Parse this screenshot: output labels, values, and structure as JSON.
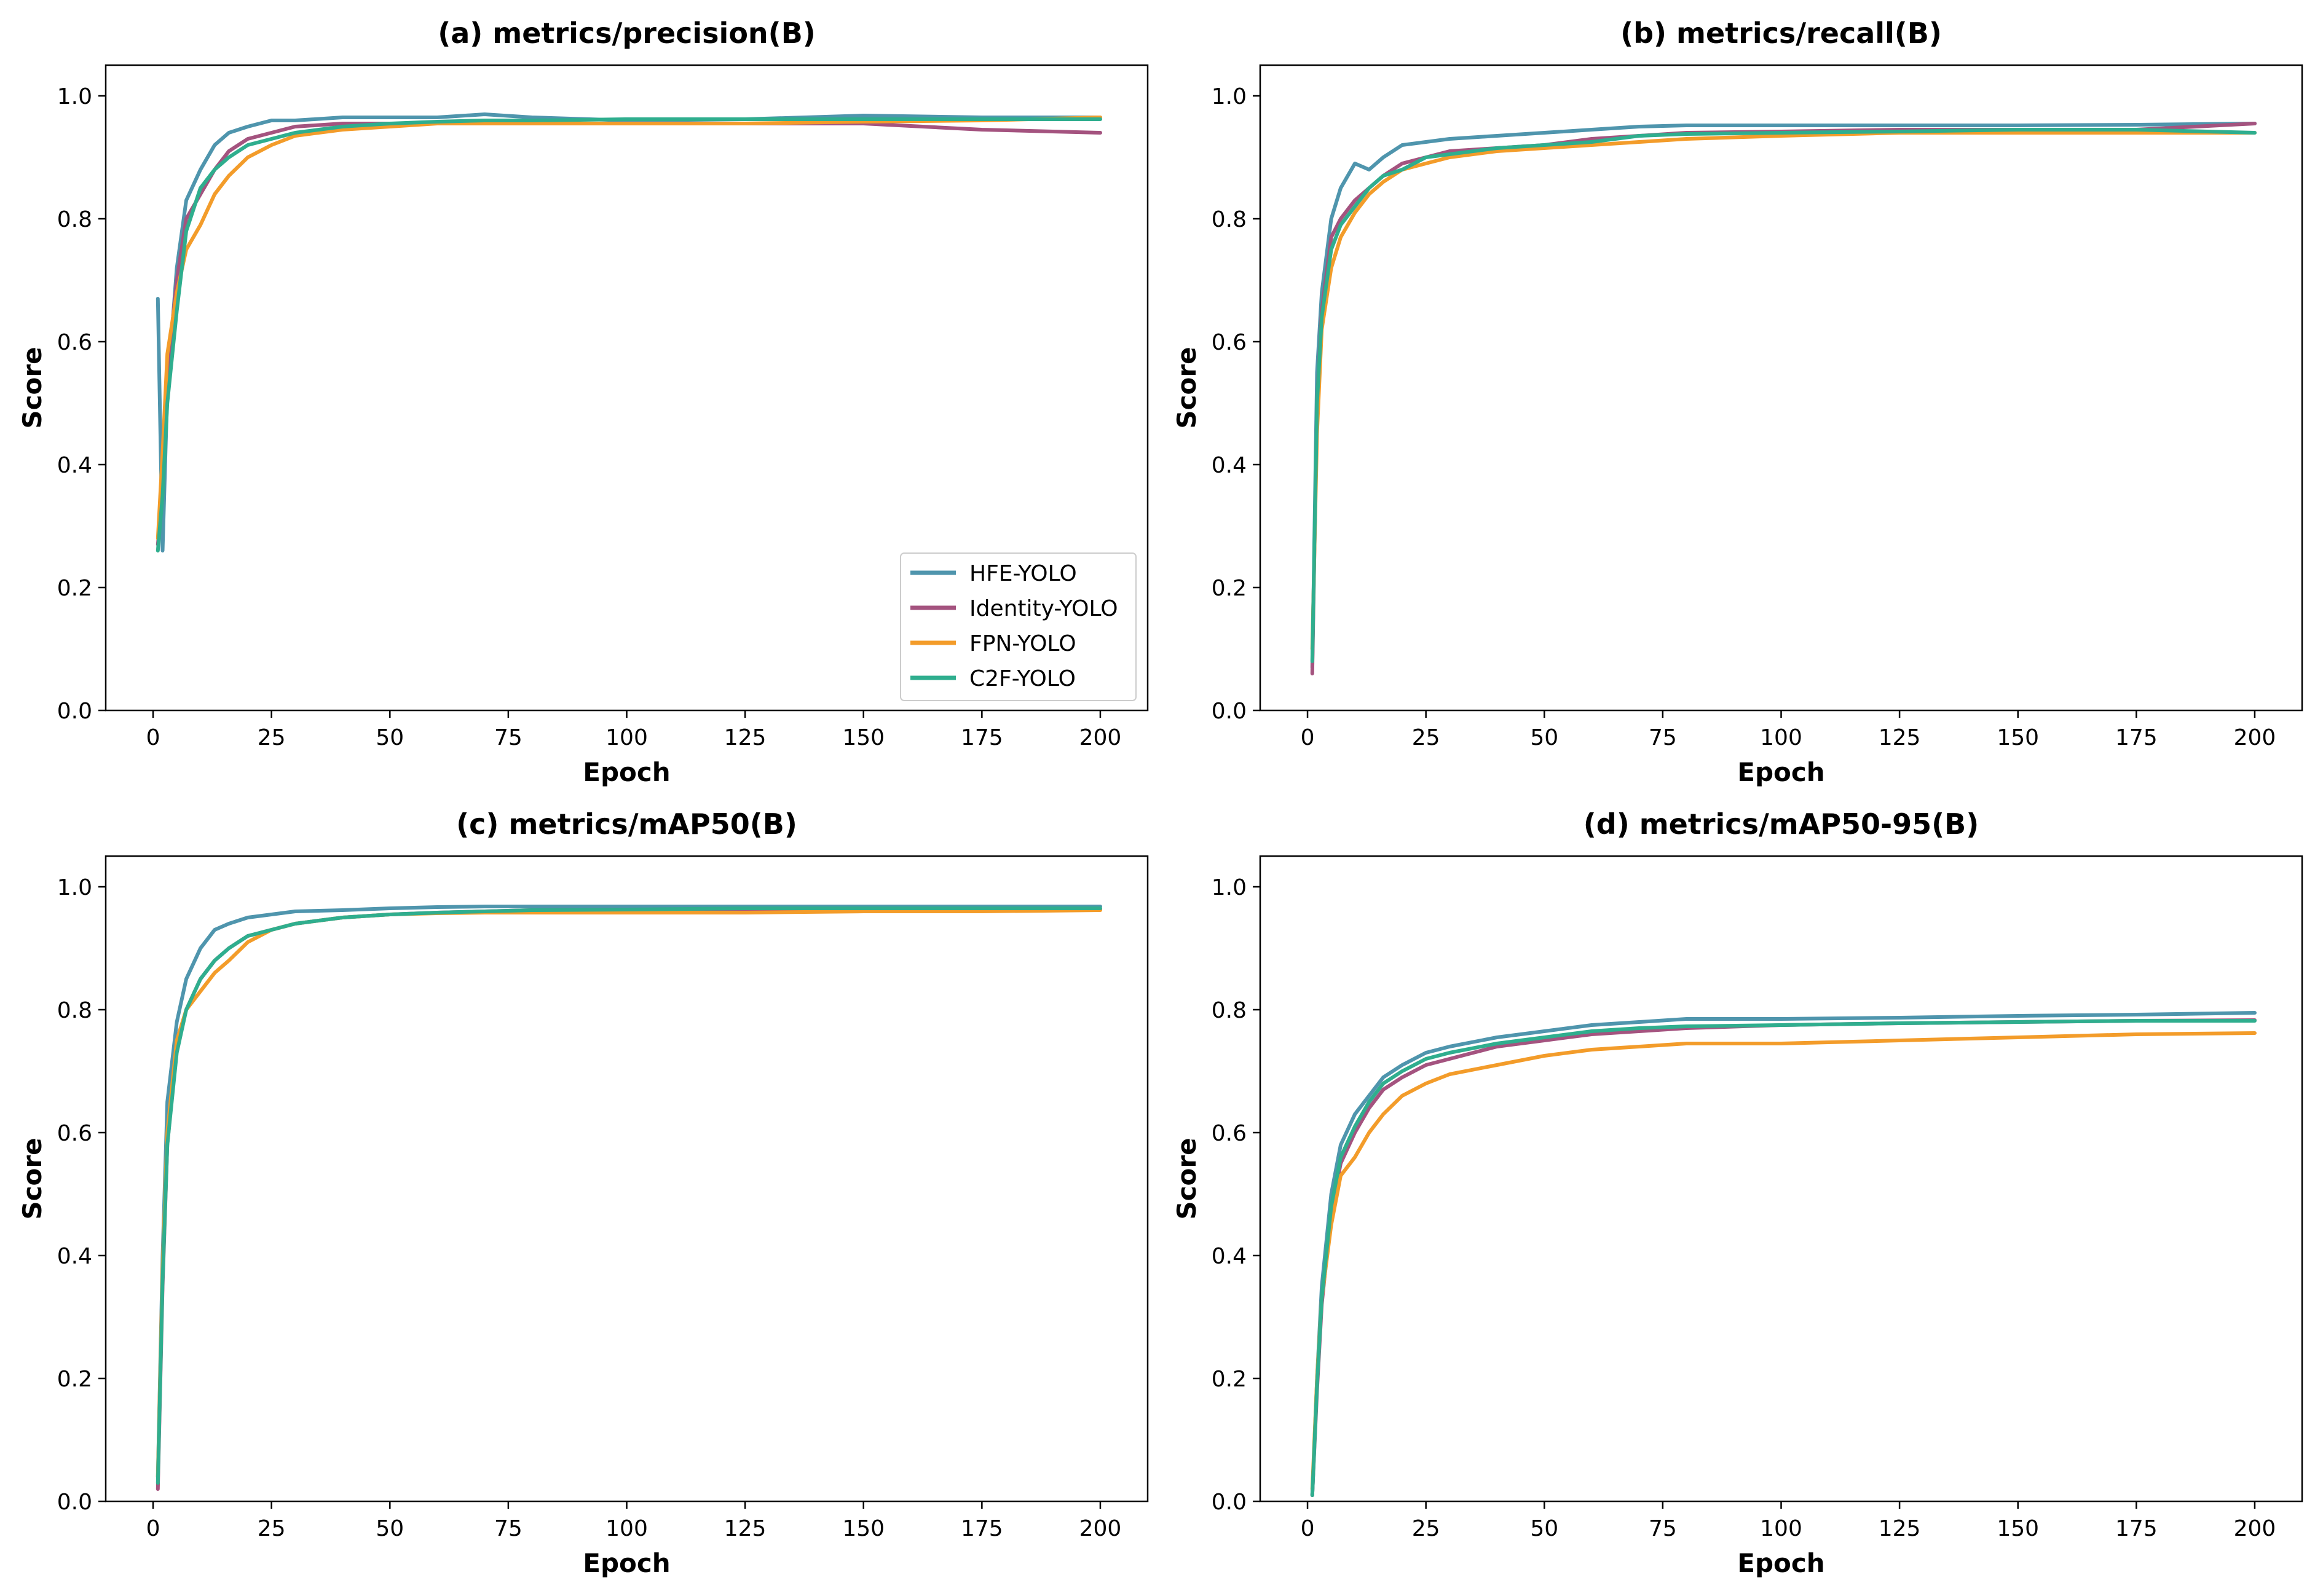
{
  "colors": {
    "HFE-YOLO": "#4f95ad",
    "Identity-YOLO": "#a4537f",
    "FPN-YOLO": "#f39c2a",
    "C2F-YOLO": "#2fae8e"
  },
  "legend": {
    "entries": [
      "HFE-YOLO",
      "Identity-YOLO",
      "FPN-YOLO",
      "C2F-YOLO"
    ],
    "placement": "lower-right of panel (a)"
  },
  "chart_data": [
    {
      "type": "line",
      "title": "(a) metrics/precision(B)",
      "xlabel": "Epoch",
      "ylabel": "Score",
      "xlim": [
        -10,
        210
      ],
      "ylim": [
        0,
        1.05
      ],
      "xticks": [
        "0",
        "25",
        "50",
        "75",
        "100",
        "125",
        "150",
        "175",
        "200"
      ],
      "yticks": [
        "0.0",
        "0.2",
        "0.4",
        "0.6",
        "0.8",
        "1.0"
      ],
      "grid": false,
      "legend": true,
      "series": [
        {
          "name": "HFE-YOLO",
          "x": [
            1,
            2,
            3,
            5,
            7,
            10,
            13,
            16,
            20,
            25,
            30,
            40,
            50,
            60,
            70,
            80,
            100,
            125,
            150,
            175,
            200
          ],
          "y": [
            0.67,
            0.26,
            0.52,
            0.72,
            0.83,
            0.88,
            0.92,
            0.94,
            0.95,
            0.96,
            0.96,
            0.965,
            0.965,
            0.965,
            0.97,
            0.965,
            0.96,
            0.962,
            0.968,
            0.965,
            0.965
          ]
        },
        {
          "name": "Identity-YOLO",
          "x": [
            1,
            2,
            3,
            5,
            7,
            10,
            13,
            16,
            20,
            25,
            30,
            40,
            50,
            60,
            70,
            80,
            100,
            125,
            150,
            175,
            200
          ],
          "y": [
            0.27,
            0.35,
            0.55,
            0.7,
            0.8,
            0.84,
            0.88,
            0.91,
            0.93,
            0.94,
            0.95,
            0.955,
            0.955,
            0.955,
            0.955,
            0.955,
            0.955,
            0.955,
            0.955,
            0.945,
            0.94
          ]
        },
        {
          "name": "FPN-YOLO",
          "x": [
            1,
            2,
            3,
            5,
            7,
            10,
            13,
            16,
            20,
            25,
            30,
            40,
            50,
            60,
            70,
            80,
            100,
            125,
            150,
            175,
            200
          ],
          "y": [
            0.28,
            0.42,
            0.58,
            0.68,
            0.75,
            0.79,
            0.84,
            0.87,
            0.9,
            0.92,
            0.935,
            0.945,
            0.95,
            0.955,
            0.955,
            0.955,
            0.955,
            0.955,
            0.958,
            0.96,
            0.965
          ]
        },
        {
          "name": "C2F-YOLO",
          "x": [
            1,
            2,
            3,
            5,
            7,
            10,
            13,
            16,
            20,
            25,
            30,
            40,
            50,
            60,
            70,
            80,
            100,
            125,
            150,
            175,
            200
          ],
          "y": [
            0.26,
            0.35,
            0.5,
            0.65,
            0.78,
            0.85,
            0.88,
            0.9,
            0.92,
            0.93,
            0.94,
            0.95,
            0.955,
            0.958,
            0.96,
            0.96,
            0.962,
            0.962,
            0.962,
            0.962,
            0.962
          ]
        }
      ]
    },
    {
      "type": "line",
      "title": "(b) metrics/recall(B)",
      "xlabel": "Epoch",
      "ylabel": "Score",
      "xlim": [
        -10,
        210
      ],
      "ylim": [
        0,
        1.05
      ],
      "xticks": [
        "0",
        "25",
        "50",
        "75",
        "100",
        "125",
        "150",
        "175",
        "200"
      ],
      "yticks": [
        "0.0",
        "0.2",
        "0.4",
        "0.6",
        "0.8",
        "1.0"
      ],
      "grid": false,
      "legend": false,
      "series": [
        {
          "name": "HFE-YOLO",
          "x": [
            1,
            2,
            3,
            5,
            7,
            10,
            13,
            16,
            20,
            25,
            30,
            40,
            50,
            60,
            70,
            80,
            100,
            125,
            150,
            175,
            200
          ],
          "y": [
            0.07,
            0.55,
            0.68,
            0.8,
            0.85,
            0.89,
            0.88,
            0.9,
            0.92,
            0.925,
            0.93,
            0.935,
            0.94,
            0.945,
            0.95,
            0.952,
            0.952,
            0.952,
            0.952,
            0.953,
            0.955
          ]
        },
        {
          "name": "Identity-YOLO",
          "x": [
            1,
            2,
            3,
            5,
            7,
            10,
            13,
            16,
            20,
            25,
            30,
            40,
            50,
            60,
            70,
            80,
            100,
            125,
            150,
            175,
            200
          ],
          "y": [
            0.06,
            0.5,
            0.65,
            0.77,
            0.8,
            0.83,
            0.85,
            0.87,
            0.89,
            0.9,
            0.91,
            0.915,
            0.92,
            0.93,
            0.935,
            0.94,
            0.942,
            0.945,
            0.945,
            0.945,
            0.955
          ]
        },
        {
          "name": "FPN-YOLO",
          "x": [
            1,
            2,
            3,
            5,
            7,
            10,
            13,
            16,
            20,
            25,
            30,
            40,
            50,
            60,
            70,
            80,
            100,
            125,
            150,
            175,
            200
          ],
          "y": [
            0.1,
            0.45,
            0.62,
            0.72,
            0.77,
            0.81,
            0.84,
            0.86,
            0.88,
            0.89,
            0.9,
            0.91,
            0.915,
            0.92,
            0.925,
            0.93,
            0.935,
            0.94,
            0.94,
            0.94,
            0.94
          ]
        },
        {
          "name": "C2F-YOLO",
          "x": [
            1,
            2,
            3,
            5,
            7,
            10,
            13,
            16,
            20,
            25,
            30,
            40,
            50,
            60,
            70,
            80,
            100,
            125,
            150,
            175,
            200
          ],
          "y": [
            0.08,
            0.5,
            0.64,
            0.75,
            0.79,
            0.82,
            0.85,
            0.87,
            0.88,
            0.9,
            0.905,
            0.915,
            0.92,
            0.925,
            0.935,
            0.938,
            0.94,
            0.942,
            0.945,
            0.945,
            0.94
          ]
        }
      ]
    },
    {
      "type": "line",
      "title": "(c) metrics/mAP50(B)",
      "xlabel": "Epoch",
      "ylabel": "Score",
      "xlim": [
        -10,
        210
      ],
      "ylim": [
        0,
        1.05
      ],
      "xticks": [
        "0",
        "25",
        "50",
        "75",
        "100",
        "125",
        "150",
        "175",
        "200"
      ],
      "yticks": [
        "0.0",
        "0.2",
        "0.4",
        "0.6",
        "0.8",
        "1.0"
      ],
      "grid": false,
      "legend": false,
      "series": [
        {
          "name": "HFE-YOLO",
          "x": [
            1,
            2,
            3,
            5,
            7,
            10,
            13,
            16,
            20,
            25,
            30,
            40,
            50,
            60,
            70,
            80,
            100,
            125,
            150,
            175,
            200
          ],
          "y": [
            0.04,
            0.4,
            0.65,
            0.78,
            0.85,
            0.9,
            0.93,
            0.94,
            0.95,
            0.955,
            0.96,
            0.962,
            0.965,
            0.967,
            0.968,
            0.968,
            0.968,
            0.968,
            0.968,
            0.968,
            0.968
          ]
        },
        {
          "name": "Identity-YOLO",
          "x": [
            1,
            2,
            3,
            5,
            7,
            10,
            13,
            16,
            20,
            25,
            30,
            40,
            50,
            60,
            70,
            80,
            100,
            125,
            150,
            175,
            200
          ],
          "y": [
            0.02,
            0.35,
            0.58,
            0.74,
            0.8,
            0.85,
            0.88,
            0.9,
            0.92,
            0.93,
            0.94,
            0.95,
            0.955,
            0.958,
            0.96,
            0.962,
            0.963,
            0.963,
            0.963,
            0.963,
            0.963
          ]
        },
        {
          "name": "FPN-YOLO",
          "x": [
            1,
            2,
            3,
            5,
            7,
            10,
            13,
            16,
            20,
            25,
            30,
            40,
            50,
            60,
            70,
            80,
            100,
            125,
            150,
            175,
            200
          ],
          "y": [
            0.04,
            0.38,
            0.6,
            0.75,
            0.8,
            0.83,
            0.86,
            0.88,
            0.91,
            0.93,
            0.94,
            0.95,
            0.955,
            0.957,
            0.958,
            0.958,
            0.958,
            0.958,
            0.96,
            0.96,
            0.962
          ]
        },
        {
          "name": "C2F-YOLO",
          "x": [
            1,
            2,
            3,
            5,
            7,
            10,
            13,
            16,
            20,
            25,
            30,
            40,
            50,
            60,
            70,
            80,
            100,
            125,
            150,
            175,
            200
          ],
          "y": [
            0.03,
            0.36,
            0.58,
            0.73,
            0.8,
            0.85,
            0.88,
            0.9,
            0.92,
            0.93,
            0.94,
            0.95,
            0.955,
            0.958,
            0.96,
            0.962,
            0.963,
            0.965,
            0.965,
            0.965,
            0.965
          ]
        }
      ]
    },
    {
      "type": "line",
      "title": "(d) metrics/mAP50-95(B)",
      "xlabel": "Epoch",
      "ylabel": "Score",
      "xlim": [
        -10,
        210
      ],
      "ylim": [
        0,
        1.05
      ],
      "xticks": [
        "0",
        "25",
        "50",
        "75",
        "100",
        "125",
        "150",
        "175",
        "200"
      ],
      "yticks": [
        "0.0",
        "0.2",
        "0.4",
        "0.6",
        "0.8",
        "1.0"
      ],
      "grid": false,
      "legend": false,
      "series": [
        {
          "name": "HFE-YOLO",
          "x": [
            1,
            2,
            3,
            5,
            7,
            10,
            13,
            16,
            20,
            25,
            30,
            40,
            50,
            60,
            70,
            80,
            100,
            125,
            150,
            175,
            200
          ],
          "y": [
            0.01,
            0.2,
            0.35,
            0.5,
            0.58,
            0.63,
            0.66,
            0.69,
            0.71,
            0.73,
            0.74,
            0.755,
            0.765,
            0.775,
            0.78,
            0.785,
            0.785,
            0.787,
            0.79,
            0.792,
            0.795
          ]
        },
        {
          "name": "Identity-YOLO",
          "x": [
            1,
            2,
            3,
            5,
            7,
            10,
            13,
            16,
            20,
            25,
            30,
            40,
            50,
            60,
            70,
            80,
            100,
            125,
            150,
            175,
            200
          ],
          "y": [
            0.01,
            0.18,
            0.32,
            0.47,
            0.55,
            0.6,
            0.64,
            0.67,
            0.69,
            0.71,
            0.72,
            0.74,
            0.75,
            0.76,
            0.765,
            0.77,
            0.775,
            0.778,
            0.78,
            0.782,
            0.783
          ]
        },
        {
          "name": "FPN-YOLO",
          "x": [
            1,
            2,
            3,
            5,
            7,
            10,
            13,
            16,
            20,
            25,
            30,
            40,
            50,
            60,
            70,
            80,
            100,
            125,
            150,
            175,
            200
          ],
          "y": [
            0.02,
            0.2,
            0.33,
            0.45,
            0.53,
            0.56,
            0.6,
            0.63,
            0.66,
            0.68,
            0.695,
            0.71,
            0.725,
            0.735,
            0.74,
            0.745,
            0.745,
            0.75,
            0.755,
            0.76,
            0.762
          ]
        },
        {
          "name": "C2F-YOLO",
          "x": [
            1,
            2,
            3,
            5,
            7,
            10,
            13,
            16,
            20,
            25,
            30,
            40,
            50,
            60,
            70,
            80,
            100,
            125,
            150,
            175,
            200
          ],
          "y": [
            0.01,
            0.19,
            0.33,
            0.48,
            0.56,
            0.61,
            0.65,
            0.68,
            0.7,
            0.72,
            0.73,
            0.745,
            0.755,
            0.765,
            0.77,
            0.773,
            0.775,
            0.778,
            0.78,
            0.782,
            0.782
          ]
        }
      ]
    }
  ]
}
